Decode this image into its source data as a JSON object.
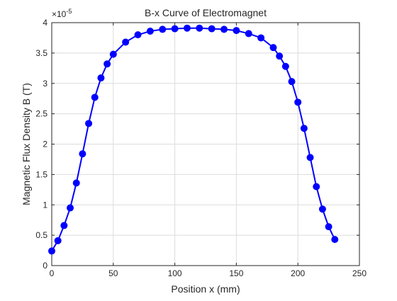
{
  "chart_data": {
    "type": "line",
    "title": "B-x Curve of Electromagnet",
    "xlabel": "Position x (mm)",
    "ylabel": "Magnetic Flux Density B (T)",
    "y_exponent": "×10",
    "y_exponent_power": "-5",
    "xlim": [
      0,
      250
    ],
    "ylim": [
      0,
      4
    ],
    "x_ticks": [
      "0",
      "50",
      "100",
      "150",
      "200",
      "250"
    ],
    "y_ticks": [
      "0",
      "0.5",
      "1",
      "1.5",
      "2",
      "2.5",
      "3",
      "3.5",
      "4"
    ],
    "grid": true,
    "series": [
      {
        "color": "#0000ff",
        "marker": "circle",
        "x": [
          0,
          5,
          10,
          15,
          20,
          25,
          30,
          35,
          40,
          45,
          50,
          60,
          70,
          80,
          90,
          100,
          110,
          120,
          130,
          140,
          150,
          160,
          170,
          180,
          185,
          190,
          195,
          200,
          205,
          210,
          215,
          220,
          225,
          230
        ],
        "y": [
          0.24,
          0.41,
          0.66,
          0.95,
          1.36,
          1.84,
          2.34,
          2.77,
          3.09,
          3.32,
          3.48,
          3.68,
          3.8,
          3.86,
          3.89,
          3.9,
          3.91,
          3.91,
          3.9,
          3.89,
          3.87,
          3.82,
          3.75,
          3.59,
          3.45,
          3.28,
          3.03,
          2.69,
          2.26,
          1.78,
          1.3,
          0.93,
          0.64,
          0.43
        ]
      }
    ]
  }
}
